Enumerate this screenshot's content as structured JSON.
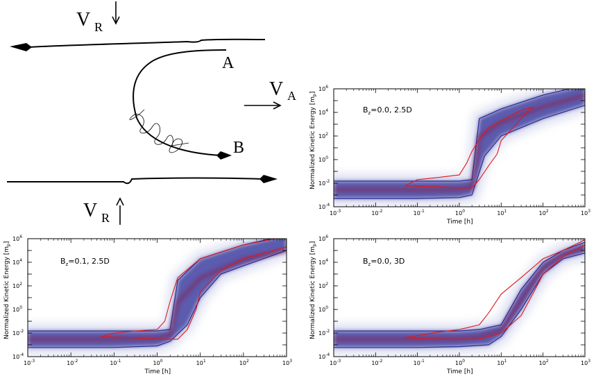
{
  "diagram": {
    "labels": {
      "vr_top": {
        "main": "V",
        "sub": "R"
      },
      "vr_bottom": {
        "main": "V",
        "sub": "R"
      },
      "va": {
        "main": "V",
        "sub": "A"
      },
      "point_a": "A",
      "point_b": "B"
    }
  },
  "chart_data": [
    {
      "type": "heatmap",
      "panel": "top-right",
      "title": {
        "main": "B",
        "sub": "z",
        "rest": "=0.0, 2.5D"
      },
      "xlabel": "Time [h]",
      "ylabel": "Normalized Kinetic Energy [m",
      "ylabel_sub": "p",
      "ylabel_end": "]",
      "xscale": "log",
      "yscale": "log",
      "xlim": [
        0.001,
        1000
      ],
      "ylim": [
        0.0001,
        1000000
      ],
      "xticks": [
        "10^-3",
        "10^-2",
        "10^-1",
        "10^0",
        "10^1",
        "10^2",
        "10^3"
      ],
      "yticks": [
        "10^-4",
        "10^-2",
        "10^0",
        "10^2",
        "10^4",
        "10^6"
      ],
      "blue_band": {
        "upper": [
          [
            0.001,
            0.015
          ],
          [
            0.1,
            0.015
          ],
          [
            1,
            0.015
          ],
          [
            2,
            0.02
          ],
          [
            3,
            3000
          ],
          [
            10,
            20000
          ],
          [
            100,
            300000
          ],
          [
            1000,
            2000000
          ]
        ],
        "lower": [
          [
            0.001,
            0.0005
          ],
          [
            0.1,
            0.0005
          ],
          [
            1,
            0.0006
          ],
          [
            2,
            0.001
          ],
          [
            4,
            2
          ],
          [
            10,
            100
          ],
          [
            100,
            3000
          ],
          [
            1000,
            40000
          ]
        ]
      },
      "red_contour": [
        [
          0.05,
          0.006
        ],
        [
          0.3,
          0.005
        ],
        [
          1,
          0.004
        ],
        [
          2,
          0.004
        ],
        [
          3,
          0.02
        ],
        [
          5,
          0.3
        ],
        [
          8,
          3
        ],
        [
          10,
          40
        ],
        [
          30,
          3000
        ],
        [
          50,
          20000
        ],
        [
          60,
          30000
        ],
        [
          30,
          15000
        ],
        [
          5,
          500
        ],
        [
          3,
          50
        ],
        [
          2,
          5
        ],
        [
          1.5,
          0.5
        ],
        [
          1,
          0.05
        ],
        [
          0.3,
          0.03
        ],
        [
          0.1,
          0.02
        ],
        [
          0.05,
          0.006
        ]
      ]
    },
    {
      "type": "heatmap",
      "panel": "bottom-left",
      "title": {
        "main": "B",
        "sub": "z",
        "rest": "=0.1, 2.5D"
      },
      "xlabel": "Time [h]",
      "ylabel": "Normalized Kinetic Energy [m",
      "ylabel_sub": "p",
      "ylabel_end": "]",
      "xscale": "log",
      "yscale": "log",
      "xlim": [
        0.001,
        1000
      ],
      "ylim": [
        0.0001,
        1000000
      ],
      "xticks": [
        "10^-3",
        "10^-2",
        "10^-1",
        "10^0",
        "10^1",
        "10^2",
        "10^3"
      ],
      "yticks": [
        "10^-4",
        "10^-2",
        "10^0",
        "10^2",
        "10^4",
        "10^6"
      ],
      "blue_band": {
        "upper": [
          [
            0.001,
            0.015
          ],
          [
            0.1,
            0.015
          ],
          [
            1,
            0.015
          ],
          [
            2,
            0.02
          ],
          [
            3,
            300
          ],
          [
            10,
            20000
          ],
          [
            100,
            300000
          ],
          [
            1000,
            2000000
          ]
        ],
        "lower": [
          [
            0.001,
            0.0006
          ],
          [
            0.1,
            0.0006
          ],
          [
            1,
            0.0008
          ],
          [
            2,
            0.002
          ],
          [
            5,
            0.05
          ],
          [
            10,
            10
          ],
          [
            30,
            1000
          ],
          [
            100,
            5000
          ],
          [
            1000,
            100000
          ]
        ]
      },
      "red_contour": [
        [
          0.05,
          0.005
        ],
        [
          0.3,
          0.004
        ],
        [
          1,
          0.003
        ],
        [
          3,
          0.003
        ],
        [
          5,
          0.02
        ],
        [
          8,
          1
        ],
        [
          10,
          30
        ],
        [
          30,
          2000
        ],
        [
          100,
          20000
        ],
        [
          1000,
          200000
        ],
        [
          1000,
          1500000
        ],
        [
          100,
          300000
        ],
        [
          10,
          20000
        ],
        [
          3,
          500
        ],
        [
          2,
          5
        ],
        [
          1.5,
          0.1
        ],
        [
          1,
          0.02
        ],
        [
          0.3,
          0.015
        ],
        [
          0.1,
          0.01
        ],
        [
          0.05,
          0.005
        ]
      ]
    },
    {
      "type": "heatmap",
      "panel": "bottom-right",
      "title": {
        "main": "B",
        "sub": "z",
        "rest": "=0.0, 3D"
      },
      "xlabel": "Time [h]",
      "ylabel": "Normalized Kinetic Energy [m",
      "ylabel_sub": "p",
      "ylabel_end": "]",
      "xscale": "log",
      "yscale": "log",
      "xlim": [
        0.001,
        1000
      ],
      "ylim": [
        0.0001,
        1000000
      ],
      "xticks": [
        "10^-3",
        "10^-2",
        "10^-1",
        "10^0",
        "10^1",
        "10^2",
        "10^3"
      ],
      "yticks": [
        "10^-4",
        "10^-2",
        "10^0",
        "10^2",
        "10^4",
        "10^6"
      ],
      "blue_band": {
        "upper": [
          [
            0.001,
            0.015
          ],
          [
            0.1,
            0.015
          ],
          [
            1,
            0.015
          ],
          [
            3,
            0.02
          ],
          [
            10,
            0.05
          ],
          [
            30,
            50
          ],
          [
            100,
            10000
          ],
          [
            300,
            100000
          ],
          [
            1000,
            500000
          ]
        ],
        "lower": [
          [
            0.001,
            0.0006
          ],
          [
            0.1,
            0.0006
          ],
          [
            1,
            0.0007
          ],
          [
            5,
            0.001
          ],
          [
            10,
            0.005
          ],
          [
            30,
            1
          ],
          [
            100,
            1000
          ],
          [
            300,
            20000
          ],
          [
            1000,
            60000
          ]
        ]
      },
      "red_contour": [
        [
          0.05,
          0.004
        ],
        [
          0.5,
          0.003
        ],
        [
          3,
          0.003
        ],
        [
          10,
          0.01
        ],
        [
          30,
          0.3
        ],
        [
          60,
          30
        ],
        [
          100,
          1000
        ],
        [
          300,
          30000
        ],
        [
          1000,
          300000
        ],
        [
          1000,
          800000
        ],
        [
          300,
          100000
        ],
        [
          100,
          20000
        ],
        [
          30,
          500
        ],
        [
          10,
          20
        ],
        [
          5,
          0.5
        ],
        [
          3,
          0.05
        ],
        [
          1,
          0.02
        ],
        [
          0.3,
          0.012
        ],
        [
          0.05,
          0.004
        ]
      ]
    }
  ],
  "colors": {
    "band_fill": "#3b3b9e",
    "band_outline": "#2b2b8e",
    "core": "#8b1a4a",
    "red_contour": "#e01818",
    "haze": "#c8cce8"
  }
}
